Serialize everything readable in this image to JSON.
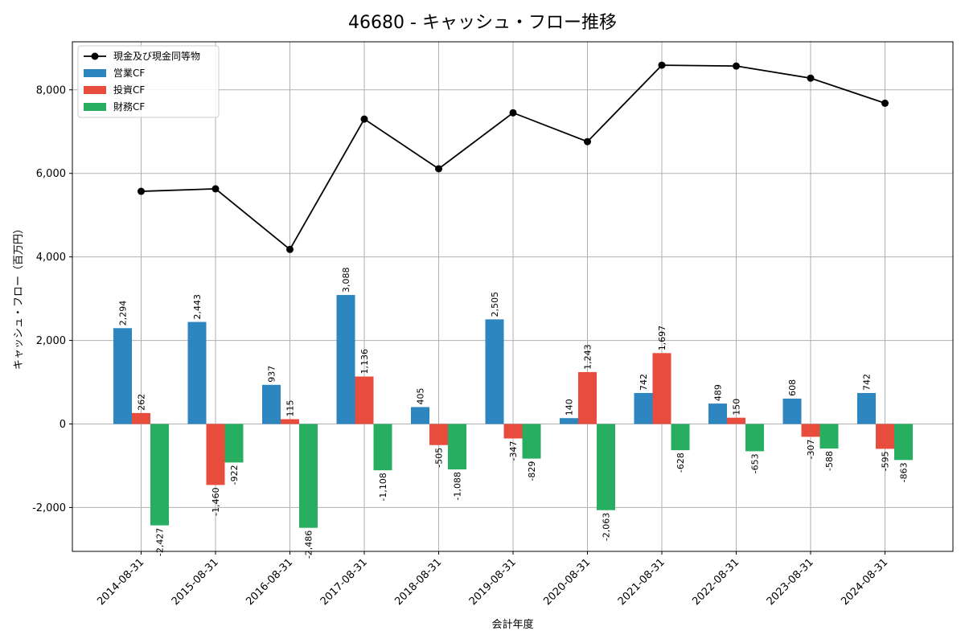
{
  "chart_data": {
    "type": "bar",
    "title": "46680 - キャッシュ・フロー推移",
    "xlabel": "会計年度",
    "ylabel": "キャッシュ・フロー（百万円）",
    "ylim": [
      -3050,
      9150
    ],
    "yticks": [
      -2000,
      0,
      2000,
      4000,
      6000,
      8000
    ],
    "ytick_labels": [
      "-2,000",
      "0",
      "2,000",
      "4,000",
      "6,000",
      "8,000"
    ],
    "grid": true,
    "legend_position": "top-left",
    "categories": [
      "2014-08-31",
      "2015-08-31",
      "2016-08-31",
      "2017-08-31",
      "2018-08-31",
      "2019-08-31",
      "2020-08-31",
      "2021-08-31",
      "2022-08-31",
      "2023-08-31",
      "2024-08-31"
    ],
    "series": [
      {
        "name": "営業CF",
        "kind": "bar",
        "color": "#2e86c1",
        "values": [
          2294,
          2443,
          937,
          3088,
          405,
          2505,
          140,
          742,
          489,
          608,
          742
        ],
        "labels": [
          "2,294",
          "2,443",
          "937",
          "3,088",
          "405",
          "2,505",
          "140",
          "742",
          "489",
          "608",
          "742"
        ]
      },
      {
        "name": "投資CF",
        "kind": "bar",
        "color": "#e74c3c",
        "values": [
          262,
          -1460,
          115,
          1136,
          -505,
          -347,
          1243,
          1697,
          150,
          -307,
          -595
        ],
        "labels": [
          "262",
          "-1,460",
          "115",
          "1,136",
          "-505",
          "-347",
          "1,243",
          "1,697",
          "150",
          "-307",
          "-595"
        ]
      },
      {
        "name": "財務CF",
        "kind": "bar",
        "color": "#27ae60",
        "values": [
          -2427,
          -922,
          -2486,
          -1108,
          -1088,
          -829,
          -2063,
          -628,
          -653,
          -588,
          -863
        ],
        "labels": [
          "-2,427",
          "-922",
          "-2,486",
          "-1,108",
          "-1,088",
          "-829",
          "-2,063",
          "-628",
          "-653",
          "-588",
          "-863"
        ]
      },
      {
        "name": "現金及び現金同等物",
        "kind": "line",
        "color": "#000000",
        "values": [
          5570,
          5630,
          4180,
          7300,
          6110,
          7450,
          6760,
          8590,
          8570,
          8280,
          7680
        ]
      }
    ]
  }
}
